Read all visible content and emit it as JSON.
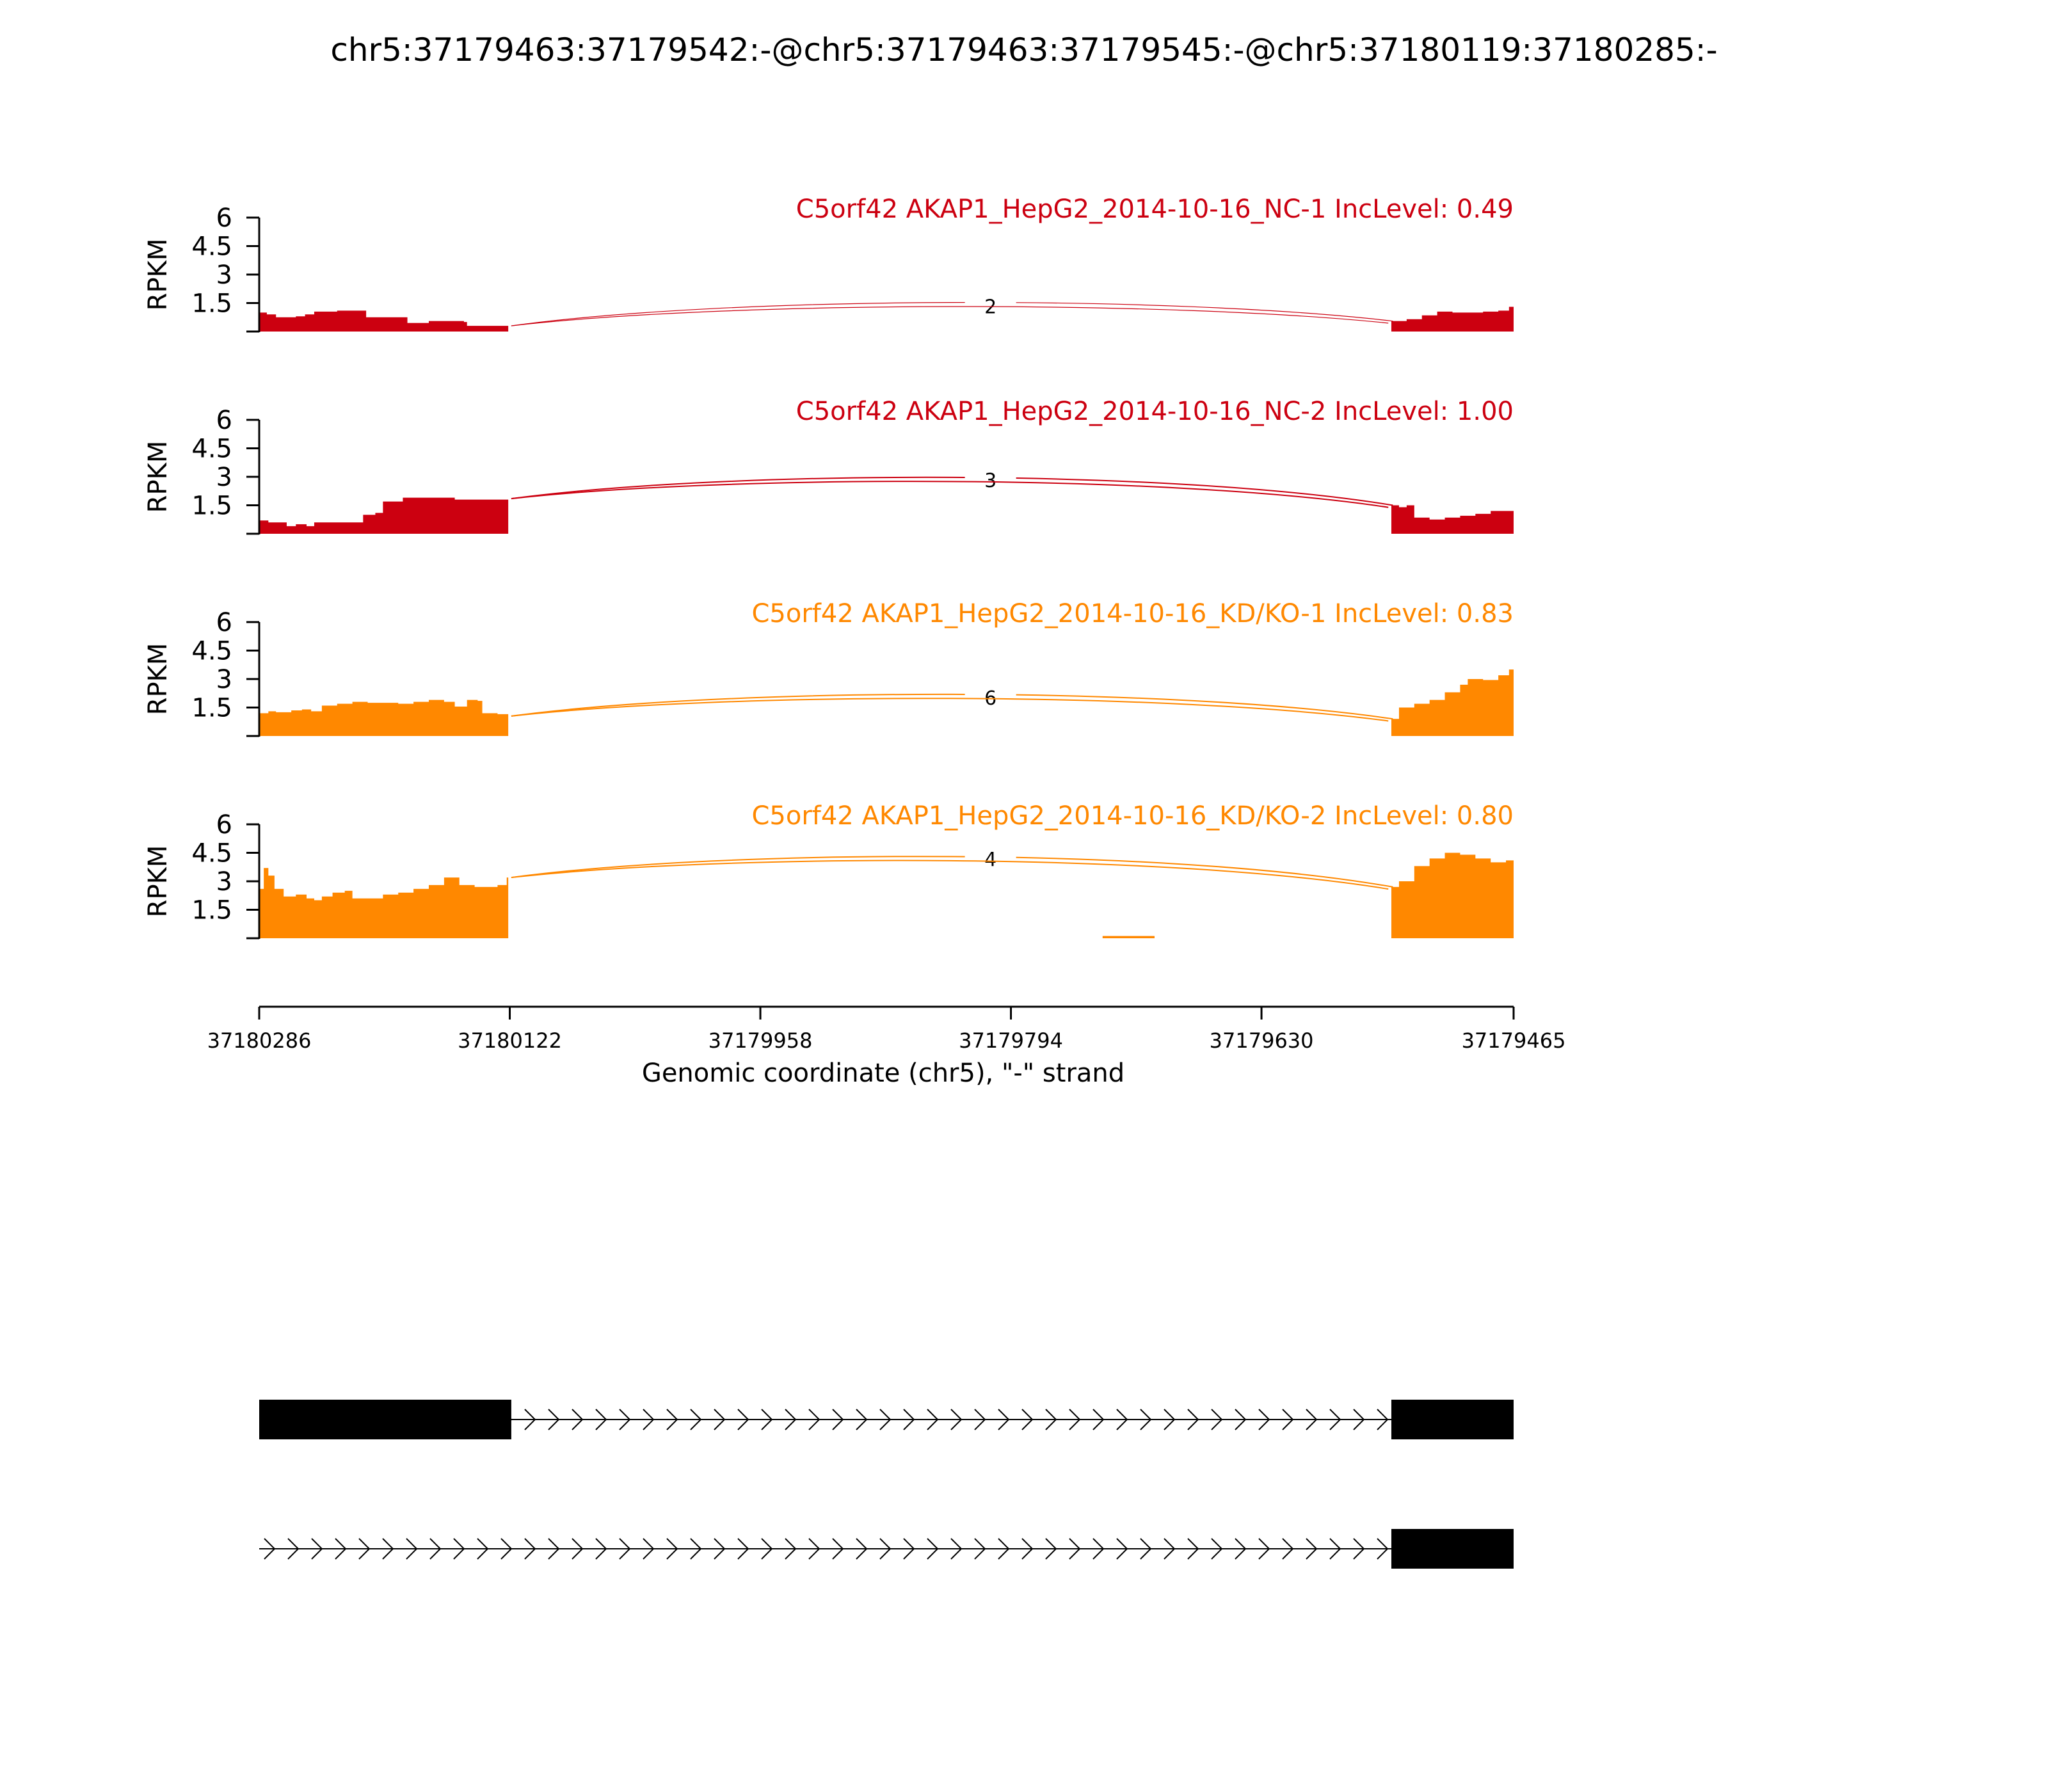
{
  "chart_data": {
    "type": "area",
    "title": "chr5:37179463:37179542:-@chr5:37179463:37179545:-@chr5:37180119:37180285:-",
    "xlabel": "Genomic coordinate (chr5), \"-\" strand",
    "ylabel": "RPKM",
    "x_range": [
      37180286,
      37179465
    ],
    "x_ticks": [
      "37180286",
      "37180122",
      "37179958",
      "37179794",
      "37179630",
      "37179465"
    ],
    "y_range": [
      0,
      6
    ],
    "y_ticks": [
      "6",
      "4.5",
      "3",
      "1.5"
    ],
    "colors": {
      "NC": "#cc0010",
      "KD": "#ff8800",
      "gene": "#000000"
    },
    "tracks": [
      {
        "name": "C5orf42 AKAP1_HepG2_2014-10-16_NC-1 IncLevel: 0.49",
        "group": "NC",
        "junctions": [
          {
            "from": 37180121,
            "to": 37179544,
            "count": "2"
          },
          {
            "from": 37180121,
            "to": 37179547,
            "count": ""
          }
        ],
        "coverage": [
          [
            37180286,
            1.0
          ],
          [
            37180281,
            0.9
          ],
          [
            37180275,
            0.75
          ],
          [
            37180262,
            0.8
          ],
          [
            37180256,
            0.9
          ],
          [
            37180250,
            1.05
          ],
          [
            37180235,
            1.1
          ],
          [
            37180215,
            1.1
          ],
          [
            37180216,
            0.75
          ],
          [
            37180200,
            0.75
          ],
          [
            37180189,
            0.45
          ],
          [
            37180177,
            0.45
          ],
          [
            37180175,
            0.55
          ],
          [
            37180152,
            0.5
          ],
          [
            37180150,
            0.3
          ],
          [
            37180140,
            0.3
          ],
          [
            37180123,
            0.3
          ],
          [
            37179545,
            0.55
          ],
          [
            37179535,
            0.65
          ],
          [
            37179525,
            0.85
          ],
          [
            37179515,
            1.05
          ],
          [
            37179505,
            1.0
          ],
          [
            37179495,
            1.0
          ],
          [
            37179485,
            1.05
          ],
          [
            37179475,
            1.1
          ],
          [
            37179468,
            1.3
          ],
          [
            37179465,
            1.3
          ]
        ]
      },
      {
        "name": "C5orf42 AKAP1_HepG2_2014-10-16_NC-2 IncLevel: 1.00",
        "group": "NC",
        "junctions": [
          {
            "from": 37180121,
            "to": 37179544,
            "count": "3"
          },
          {
            "from": 37180121,
            "to": 37179547,
            "count": ""
          }
        ],
        "coverage": [
          [
            37180286,
            0.7
          ],
          [
            37180280,
            0.6
          ],
          [
            37180268,
            0.4
          ],
          [
            37180262,
            0.5
          ],
          [
            37180255,
            0.4
          ],
          [
            37180250,
            0.6
          ],
          [
            37180240,
            0.6
          ],
          [
            37180220,
            0.6
          ],
          [
            37180218,
            1.0
          ],
          [
            37180210,
            1.1
          ],
          [
            37180205,
            1.7
          ],
          [
            37180198,
            1.7
          ],
          [
            37180192,
            1.9
          ],
          [
            37180180,
            1.9
          ],
          [
            37180165,
            1.9
          ],
          [
            37180158,
            1.8
          ],
          [
            37180123,
            1.85
          ],
          [
            37179545,
            1.5
          ],
          [
            37179540,
            1.4
          ],
          [
            37179535,
            1.5
          ],
          [
            37179530,
            0.85
          ],
          [
            37179520,
            0.75
          ],
          [
            37179510,
            0.85
          ],
          [
            37179500,
            0.95
          ],
          [
            37179490,
            1.05
          ],
          [
            37179480,
            1.2
          ],
          [
            37179465,
            1.2
          ]
        ]
      },
      {
        "name": "C5orf42 AKAP1_HepG2_2014-10-16_KD/KO-1 IncLevel: 0.83",
        "group": "KD",
        "junctions": [
          {
            "from": 37180121,
            "to": 37179544,
            "count": "6"
          },
          {
            "from": 37180121,
            "to": 37179547,
            "count": ""
          }
        ],
        "coverage": [
          [
            37180286,
            1.2
          ],
          [
            37180280,
            1.3
          ],
          [
            37180275,
            1.25
          ],
          [
            37180265,
            1.35
          ],
          [
            37180258,
            1.4
          ],
          [
            37180252,
            1.3
          ],
          [
            37180245,
            1.6
          ],
          [
            37180235,
            1.7
          ],
          [
            37180225,
            1.8
          ],
          [
            37180215,
            1.75
          ],
          [
            37180205,
            1.75
          ],
          [
            37180195,
            1.7
          ],
          [
            37180185,
            1.8
          ],
          [
            37180175,
            1.9
          ],
          [
            37180165,
            1.8
          ],
          [
            37180158,
            1.55
          ],
          [
            37180150,
            1.9
          ],
          [
            37180143,
            1.85
          ],
          [
            37180140,
            1.2
          ],
          [
            37180130,
            1.15
          ],
          [
            37180123,
            1.05
          ],
          [
            37179545,
            0.9
          ],
          [
            37179540,
            1.5
          ],
          [
            37179530,
            1.7
          ],
          [
            37179520,
            1.9
          ],
          [
            37179510,
            2.3
          ],
          [
            37179500,
            2.7
          ],
          [
            37179495,
            3.0
          ],
          [
            37179485,
            2.95
          ],
          [
            37179475,
            3.2
          ],
          [
            37179468,
            3.5
          ],
          [
            37179465,
            3.5
          ]
        ]
      },
      {
        "name": "C5orf42 AKAP1_HepG2_2014-10-16_KD/KO-2 IncLevel: 0.80",
        "group": "KD",
        "junctions": [
          {
            "from": 37180121,
            "to": 37179544,
            "count": "4"
          },
          {
            "from": 37180121,
            "to": 37179547,
            "count": ""
          }
        ],
        "coverage": [
          [
            37180286,
            2.6
          ],
          [
            37180283,
            3.7
          ],
          [
            37180280,
            3.3
          ],
          [
            37180276,
            2.6
          ],
          [
            37180270,
            2.2
          ],
          [
            37180262,
            2.3
          ],
          [
            37180255,
            2.1
          ],
          [
            37180250,
            2.0
          ],
          [
            37180245,
            2.2
          ],
          [
            37180238,
            2.4
          ],
          [
            37180230,
            2.5
          ],
          [
            37180225,
            2.1
          ],
          [
            37180215,
            2.1
          ],
          [
            37180205,
            2.3
          ],
          [
            37180195,
            2.4
          ],
          [
            37180185,
            2.6
          ],
          [
            37180175,
            2.8
          ],
          [
            37180165,
            3.2
          ],
          [
            37180155,
            2.8
          ],
          [
            37180145,
            2.7
          ],
          [
            37180130,
            2.8
          ],
          [
            37180124,
            3.2
          ],
          [
            37180123,
            3.2
          ],
          [
            37179834,
            0.12
          ],
          [
            37179734,
            0.12
          ],
          [
            37179700,
            0.12
          ],
          [
            37179623,
            0.12
          ],
          [
            37179545,
            2.7
          ],
          [
            37179540,
            3.0
          ],
          [
            37179530,
            3.8
          ],
          [
            37179520,
            4.2
          ],
          [
            37179510,
            4.5
          ],
          [
            37179500,
            4.4
          ],
          [
            37179490,
            4.2
          ],
          [
            37179480,
            4.0
          ],
          [
            37179470,
            4.1
          ],
          [
            37179465,
            4.3
          ]
        ]
      }
    ],
    "gene_models": [
      {
        "exons": [
          [
            37180286,
            37180121
          ],
          [
            37179545,
            37179465
          ]
        ]
      },
      {
        "exons": [
          [
            37179545,
            37179465
          ]
        ]
      }
    ]
  }
}
